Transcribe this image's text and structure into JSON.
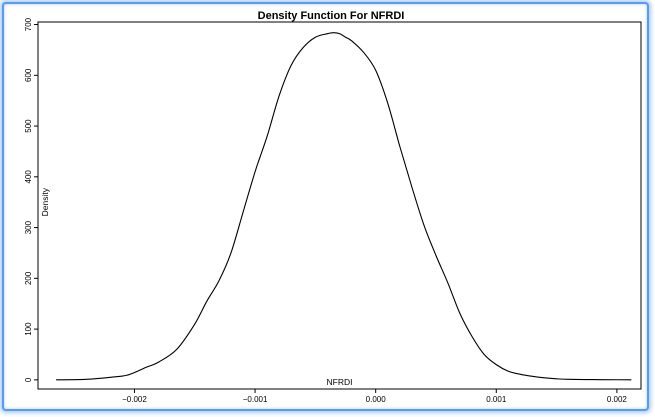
{
  "chart_data": {
    "type": "line",
    "title": "Density Function For NFRDI",
    "xlabel": "NFRDI",
    "ylabel": "Density",
    "xlim": [
      -0.0028,
      0.0022
    ],
    "ylim": [
      -18,
      705
    ],
    "xticks": [
      -0.002,
      -0.001,
      0.0,
      0.001,
      0.002
    ],
    "xtick_labels": [
      "-0.002",
      "-0.001",
      "0.000",
      "0.001",
      "0.002"
    ],
    "yticks": [
      0,
      100,
      200,
      300,
      400,
      500,
      600,
      700
    ],
    "ytick_labels": [
      "0",
      "100",
      "200",
      "300",
      "400",
      "500",
      "600",
      "700"
    ],
    "grid": false,
    "series": [
      {
        "color": "#000000",
        "x": [
          -0.00265,
          -0.0024,
          -0.0022,
          -0.00205,
          -0.0019,
          -0.0018,
          -0.00165,
          -0.0015,
          -0.0014,
          -0.0013,
          -0.0012,
          -0.0011,
          -0.001,
          -0.0009,
          -0.0008,
          -0.0007,
          -0.0006,
          -0.0005,
          -0.0004,
          -0.00035,
          -0.0003,
          -0.00025,
          -0.0002,
          -0.0001,
          0.0,
          0.0001,
          0.0002,
          0.0003,
          0.0004,
          0.0005,
          0.0006,
          0.0007,
          0.0008,
          0.0009,
          0.001,
          0.0011,
          0.0012,
          0.0013,
          0.0014,
          0.0015,
          0.0016,
          0.0018,
          0.002,
          0.00212
        ],
        "values": [
          0,
          1,
          5,
          10,
          25,
          35,
          60,
          110,
          155,
          195,
          250,
          330,
          410,
          480,
          560,
          620,
          655,
          675,
          682,
          684,
          682,
          675,
          668,
          645,
          610,
          545,
          460,
          380,
          305,
          245,
          190,
          130,
          85,
          50,
          30,
          17,
          11,
          7,
          4,
          2,
          1,
          0.5,
          0.2,
          0
        ]
      }
    ]
  }
}
